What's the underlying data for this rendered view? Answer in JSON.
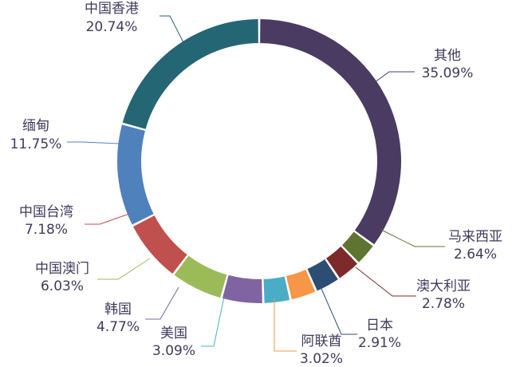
{
  "chart_data": {
    "type": "pie",
    "variant": "donut",
    "title": "",
    "slices": [
      {
        "name": "其他",
        "value": 35.09,
        "label": "35.09%",
        "color": "#4a3b63"
      },
      {
        "name": "马来西亚",
        "value": 2.64,
        "label": "2.64%",
        "color": "#5e7430"
      },
      {
        "name": "澳大利亚",
        "value": 2.78,
        "label": "2.78%",
        "color": "#7d2a2a"
      },
      {
        "name": "日本",
        "value": 2.91,
        "label": "2.91%",
        "color": "#2c4e74"
      },
      {
        "name": "阿联酋",
        "value": 3.02,
        "label": "3.02%",
        "color": "#f79646"
      },
      {
        "name": "美国",
        "value": 3.09,
        "label": "3.09%",
        "color": "#4bacc6"
      },
      {
        "name": "韩国",
        "value": 4.77,
        "label": "4.77%",
        "color": "#8064a2"
      },
      {
        "name": "中国澳门",
        "value": 6.03,
        "label": "6.03%",
        "color": "#9bbb59"
      },
      {
        "name": "中国台湾",
        "value": 7.18,
        "label": "7.18%",
        "color": "#c0504d"
      },
      {
        "name": "缅甸",
        "value": 11.75,
        "label": "11.75%",
        "color": "#4f81bd"
      },
      {
        "name": "中国香港",
        "value": 20.74,
        "label": "20.74%",
        "color": "#256675"
      }
    ]
  }
}
